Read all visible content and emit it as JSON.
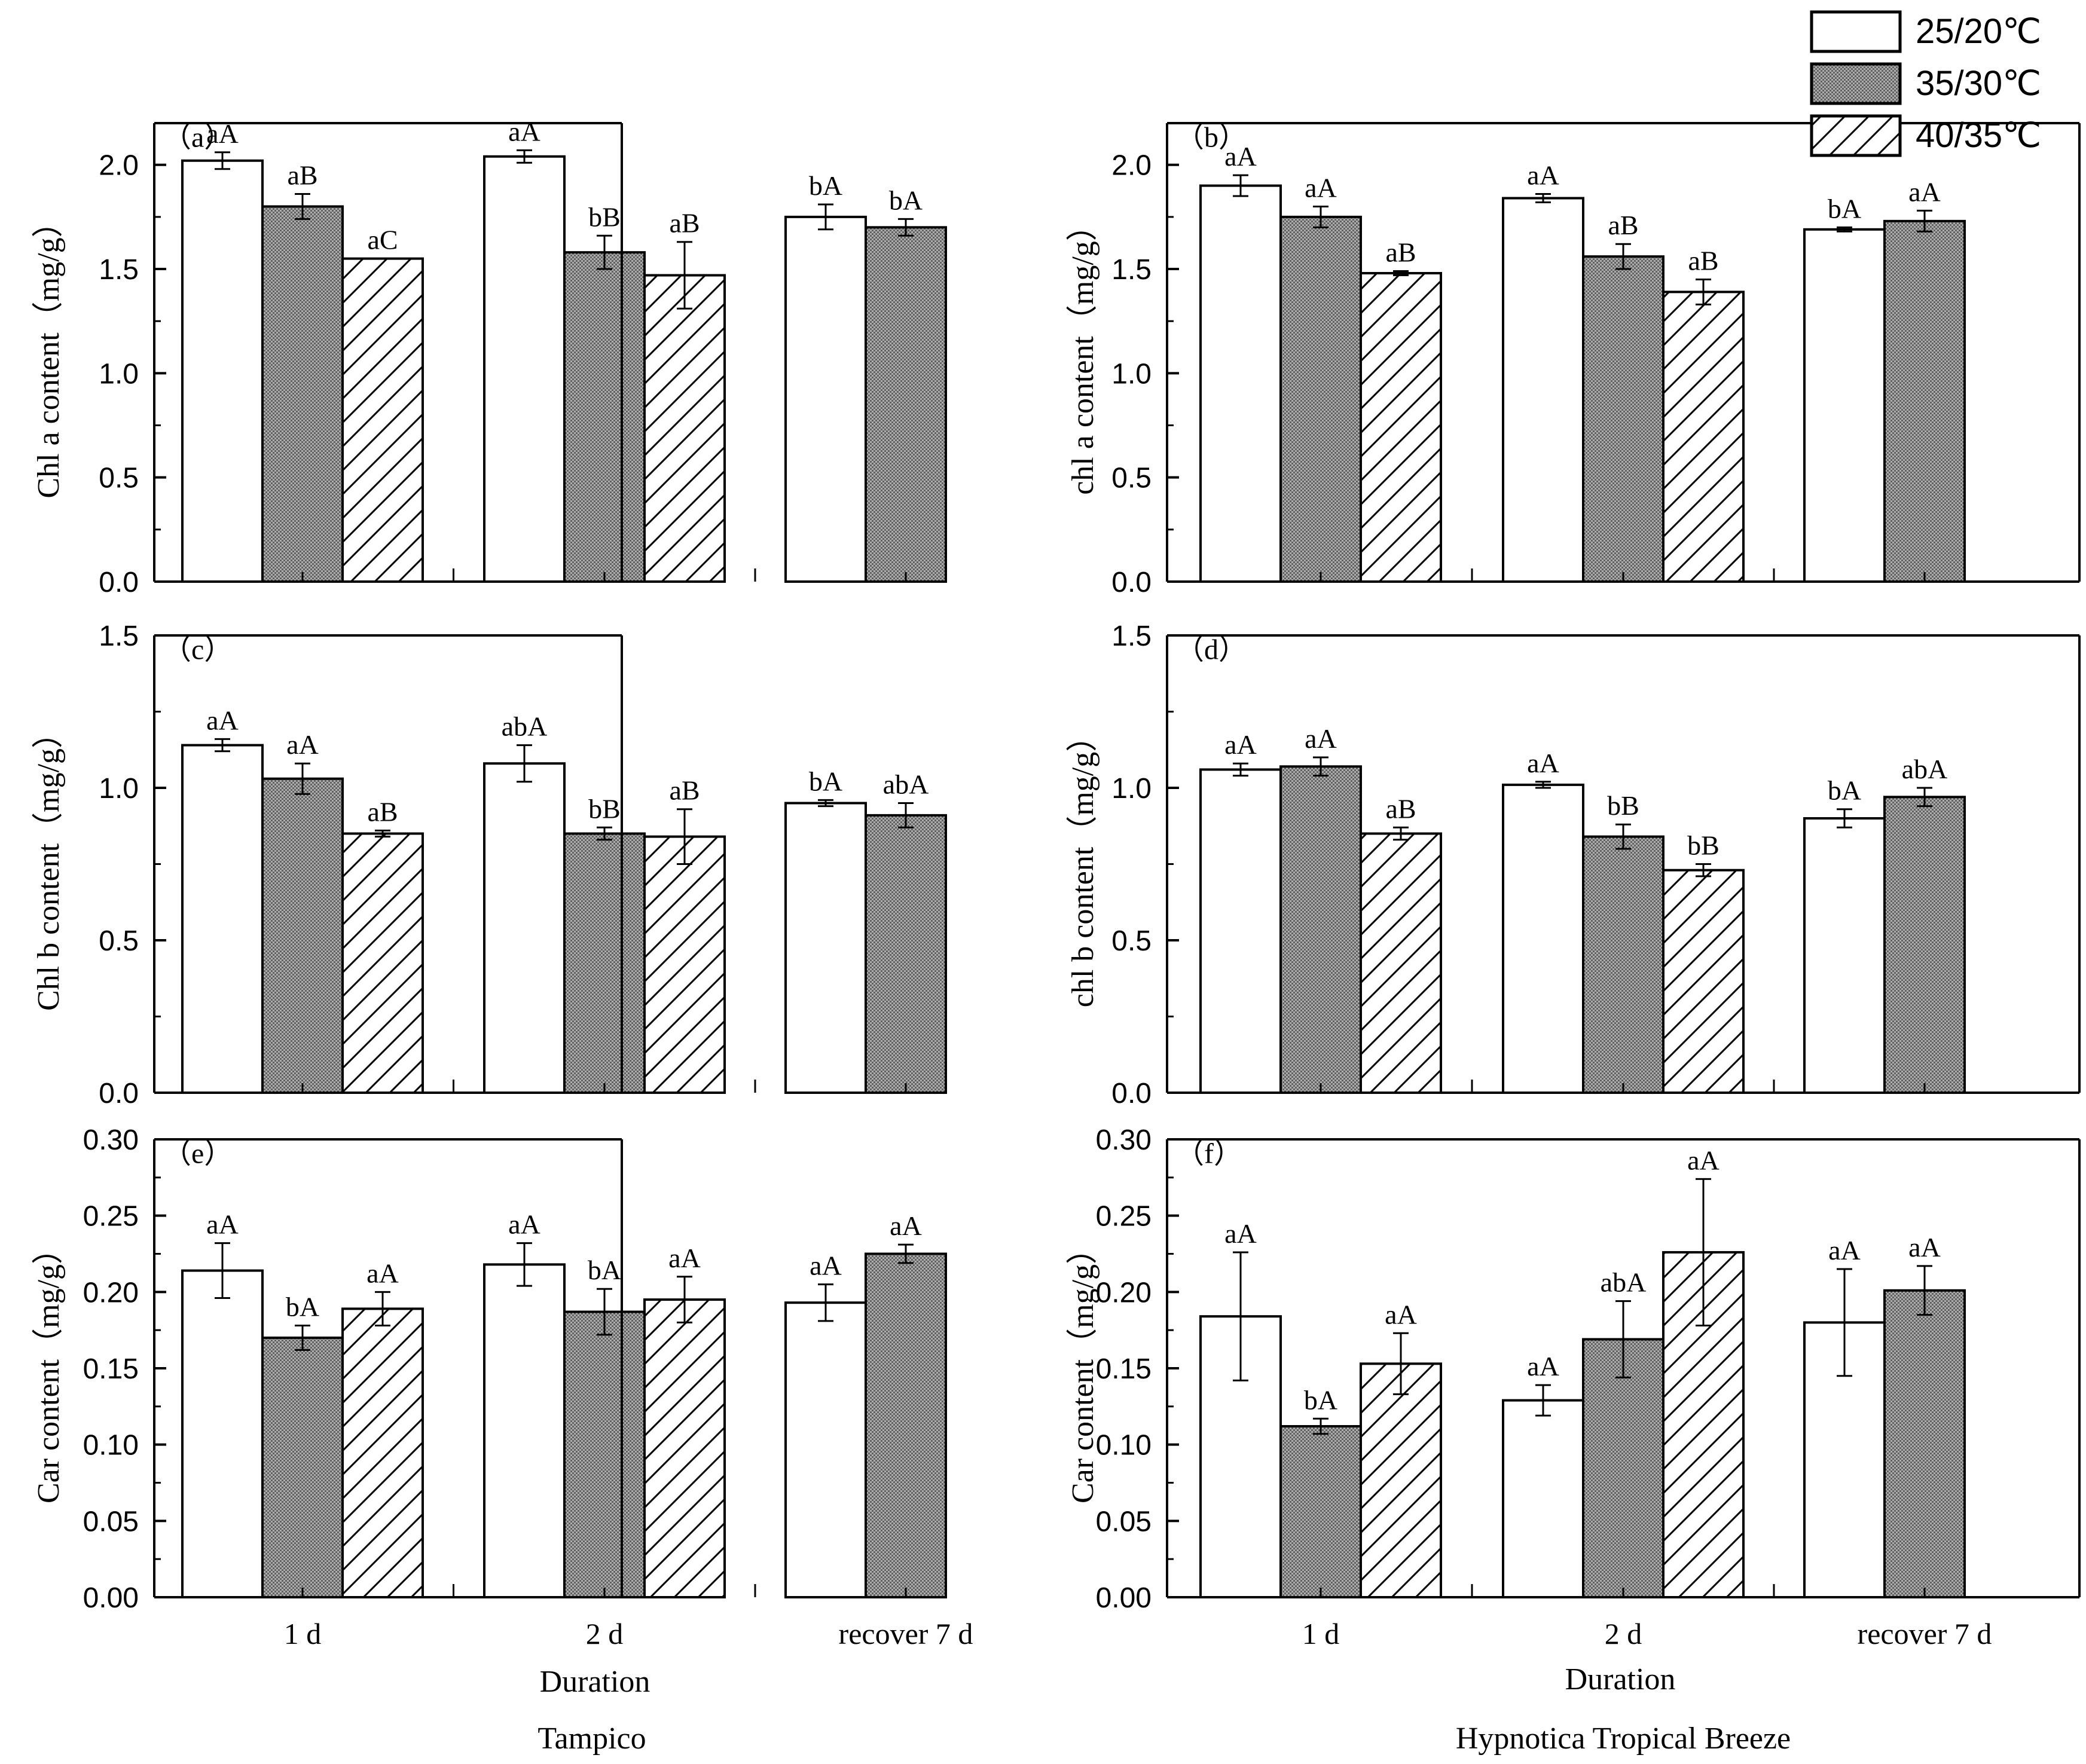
{
  "colors": {
    "axis": "#000000",
    "bar_stroke": "#000000",
    "fill_25_20": "#ffffff",
    "fill_35_30": "#8a8a8a",
    "fill_40_35": "#ffffff"
  },
  "legend": {
    "entries": [
      {
        "label": "25/20℃",
        "pattern": "white"
      },
      {
        "label": "35/30℃",
        "pattern": "grey-dots"
      },
      {
        "label": "40/35℃",
        "pattern": "hatch"
      }
    ]
  },
  "x_categories": [
    "1 d",
    "2 d",
    "recover 7 d"
  ],
  "x_titles": {
    "left": "Duration",
    "right": "Duration"
  },
  "cultivars": {
    "left": "Tampico",
    "right": "Hypnotica Tropical Breeze"
  },
  "chart_data": [
    {
      "id": "a",
      "type": "bar",
      "panel_label": "（a）",
      "ylabel": "Chl a content（mg/g）",
      "ylim": [
        0,
        2.2
      ],
      "yticks": [
        0.0,
        0.5,
        1.0,
        1.5,
        2.0
      ],
      "ytick_labels": [
        "0.0",
        "0.5",
        "1.0",
        "1.5",
        "2.0"
      ],
      "categories": [
        "1 d",
        "2 d",
        "recover 7 d"
      ],
      "series": [
        {
          "name": "25/20℃",
          "values": [
            2.02,
            2.04,
            1.75
          ],
          "errors": [
            0.04,
            0.03,
            0.06
          ],
          "labels": [
            "aA",
            "aA",
            "bA"
          ]
        },
        {
          "name": "35/30℃",
          "values": [
            1.8,
            1.58,
            1.7
          ],
          "errors": [
            0.06,
            0.08,
            0.04
          ],
          "labels": [
            "aB",
            "bB",
            "bA"
          ]
        },
        {
          "name": "40/35℃",
          "values": [
            1.55,
            1.47,
            null
          ],
          "errors": [
            0.0,
            0.16,
            null
          ],
          "labels": [
            "aC",
            "aB",
            null
          ]
        }
      ]
    },
    {
      "id": "b",
      "type": "bar",
      "panel_label": "（b）",
      "ylabel": "chl a content（mg/g）",
      "ylim": [
        0,
        2.2
      ],
      "yticks": [
        0.0,
        0.5,
        1.0,
        1.5,
        2.0
      ],
      "ytick_labels": [
        "0.0",
        "0.5",
        "1.0",
        "1.5",
        "2.0"
      ],
      "categories": [
        "1 d",
        "2 d",
        "recover 7 d"
      ],
      "series": [
        {
          "name": "25/20℃",
          "values": [
            1.9,
            1.84,
            1.69
          ],
          "errors": [
            0.05,
            0.02,
            0.01
          ],
          "labels": [
            "aA",
            "aA",
            "bA"
          ]
        },
        {
          "name": "35/30℃",
          "values": [
            1.75,
            1.56,
            1.73
          ],
          "errors": [
            0.05,
            0.06,
            0.05
          ],
          "labels": [
            "aA",
            "aB",
            "aA"
          ]
        },
        {
          "name": "40/35℃",
          "values": [
            1.48,
            1.39,
            null
          ],
          "errors": [
            0.01,
            0.06,
            null
          ],
          "labels": [
            "aB",
            "aB",
            null
          ]
        }
      ]
    },
    {
      "id": "c",
      "type": "bar",
      "panel_label": "（c）",
      "ylabel": "Chl b content（mg/g）",
      "ylim": [
        0,
        1.5
      ],
      "yticks": [
        0.0,
        0.5,
        1.0,
        1.5
      ],
      "ytick_labels": [
        "0.0",
        "0.5",
        "1.0",
        "1.5"
      ],
      "categories": [
        "1 d",
        "2 d",
        "recover 7 d"
      ],
      "series": [
        {
          "name": "25/20℃",
          "values": [
            1.14,
            1.08,
            0.95
          ],
          "errors": [
            0.02,
            0.06,
            0.01
          ],
          "labels": [
            "aA",
            "abA",
            "bA"
          ]
        },
        {
          "name": "35/30℃",
          "values": [
            1.03,
            0.85,
            0.91
          ],
          "errors": [
            0.05,
            0.02,
            0.04
          ],
          "labels": [
            "aA",
            "bB",
            "abA"
          ]
        },
        {
          "name": "40/35℃",
          "values": [
            0.85,
            0.84,
            null
          ],
          "errors": [
            0.01,
            0.09,
            null
          ],
          "labels": [
            "aB",
            "aB",
            null
          ]
        }
      ]
    },
    {
      "id": "d",
      "type": "bar",
      "panel_label": "（d）",
      "ylabel": "chl b content（mg/g）",
      "ylim": [
        0,
        1.5
      ],
      "yticks": [
        0.0,
        0.5,
        1.0,
        1.5
      ],
      "ytick_labels": [
        "0.0",
        "0.5",
        "1.0",
        "1.5"
      ],
      "categories": [
        "1 d",
        "2 d",
        "recover 7 d"
      ],
      "series": [
        {
          "name": "25/20℃",
          "values": [
            1.06,
            1.01,
            0.9
          ],
          "errors": [
            0.02,
            0.01,
            0.03
          ],
          "labels": [
            "aA",
            "aA",
            "bA"
          ]
        },
        {
          "name": "35/30℃",
          "values": [
            1.07,
            0.84,
            0.97
          ],
          "errors": [
            0.03,
            0.04,
            0.03
          ],
          "labels": [
            "aA",
            "bB",
            "abA"
          ]
        },
        {
          "name": "40/35℃",
          "values": [
            0.85,
            0.73,
            null
          ],
          "errors": [
            0.02,
            0.02,
            null
          ],
          "labels": [
            "aB",
            "bB",
            null
          ]
        }
      ]
    },
    {
      "id": "e",
      "type": "bar",
      "panel_label": "（e）",
      "ylabel": "Car content（mg/g）",
      "ylim": [
        0,
        0.3
      ],
      "yticks": [
        0.0,
        0.05,
        0.1,
        0.15,
        0.2,
        0.25,
        0.3
      ],
      "ytick_labels": [
        "0.00",
        "0.05",
        "0.10",
        "0.15",
        "0.20",
        "0.25",
        "0.30"
      ],
      "categories": [
        "1 d",
        "2 d",
        "recover 7 d"
      ],
      "series": [
        {
          "name": "25/20℃",
          "values": [
            0.214,
            0.218,
            0.193
          ],
          "errors": [
            0.018,
            0.014,
            0.012
          ],
          "labels": [
            "aA",
            "aA",
            "aA"
          ]
        },
        {
          "name": "35/30℃",
          "values": [
            0.17,
            0.187,
            0.225
          ],
          "errors": [
            0.008,
            0.015,
            0.006
          ],
          "labels": [
            "bA",
            "bA",
            "aA"
          ]
        },
        {
          "name": "40/35℃",
          "values": [
            0.189,
            0.195,
            null
          ],
          "errors": [
            0.011,
            0.015,
            null
          ],
          "labels": [
            "aA",
            "aA",
            null
          ]
        }
      ]
    },
    {
      "id": "f",
      "type": "bar",
      "panel_label": "（f）",
      "ylabel": "Car content（mg/g）",
      "ylim": [
        0,
        0.3
      ],
      "yticks": [
        0.0,
        0.05,
        0.1,
        0.15,
        0.2,
        0.25,
        0.3
      ],
      "ytick_labels": [
        "0.00",
        "0.05",
        "0.10",
        "0.15",
        "0.20",
        "0.25",
        "0.30"
      ],
      "categories": [
        "1 d",
        "2 d",
        "recover 7 d"
      ],
      "series": [
        {
          "name": "25/20℃",
          "values": [
            0.184,
            0.129,
            0.18
          ],
          "errors": [
            0.042,
            0.01,
            0.035
          ],
          "labels": [
            "aA",
            "aA",
            "aA"
          ]
        },
        {
          "name": "35/30℃",
          "values": [
            0.112,
            0.169,
            0.201
          ],
          "errors": [
            0.005,
            0.025,
            0.016
          ],
          "labels": [
            "bA",
            "abA",
            "aA"
          ]
        },
        {
          "name": "40/35℃",
          "values": [
            0.153,
            0.226,
            null
          ],
          "errors": [
            0.02,
            0.048,
            null
          ],
          "labels": [
            "aA",
            "aA",
            null
          ]
        }
      ]
    }
  ]
}
